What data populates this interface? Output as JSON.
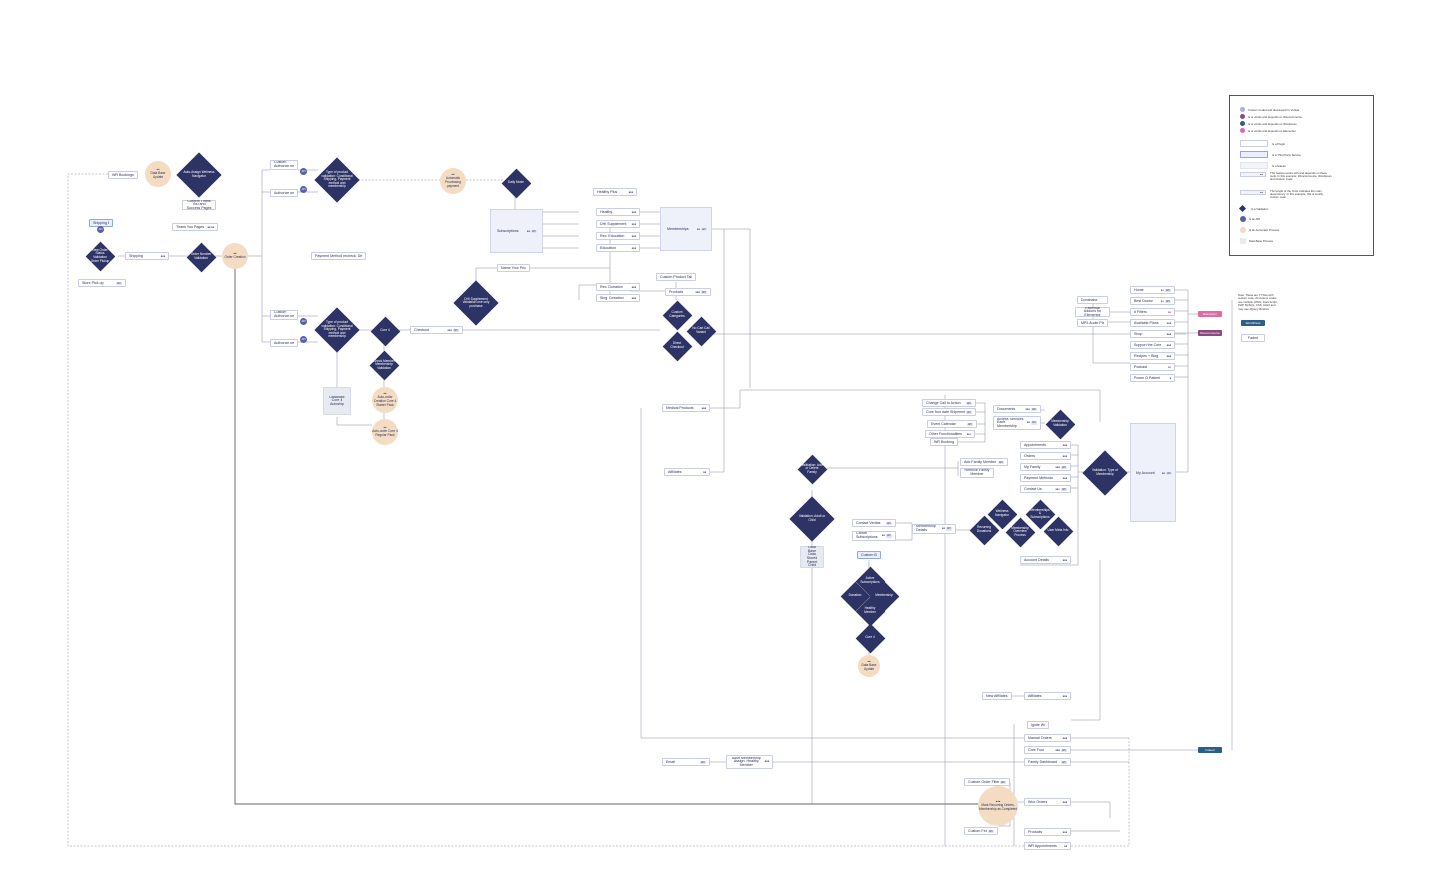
{
  "legend": {
    "items": [
      {
        "label": "Custom Coded and developed for Veritas",
        "color": "#a9b0dd"
      },
      {
        "label": "Is or works and depends on Woocommerce",
        "color": "#8b4a7d"
      },
      {
        "label": "Is or works and depends on Wordpress",
        "color": "#2a5f86"
      },
      {
        "label": "Is or works and depends on Elementor",
        "color": "#e06aa4"
      }
    ],
    "box_items": [
      {
        "label": "Is a Plugin"
      },
      {
        "label": "Is a Third Party Service"
      },
      {
        "label": "Is a feature"
      },
      {
        "label": "This feature works with and depends on these tools. In this example: Woocommerce, Wordpress and Custom Code"
      },
      {
        "label": "The length of the circle indicates the main dependency. In this example, this is mostly custom code"
      }
    ],
    "symbols": [
      {
        "label": "Is a Validation"
      },
      {
        "label": "Is an API"
      },
      {
        "label": "Is an Automatic Process"
      },
      {
        "label": "Data Base Process"
      }
    ]
  },
  "nodes": {
    "wp_bookings_top": "WR Bookings",
    "shipping_easy": "Shipping Easy",
    "store_pickup": "Store Pick-up",
    "shipping": "Shipping",
    "custom_thank_you": "Custom Thank You and Success Pages",
    "thank_you_pages": "Thank You Pages",
    "custom_authorize_1": "Custom Authorize.net",
    "authorize_1": "Authorize.net",
    "payment_method_recheck": "Payment Method recheck: Discount",
    "custom_authorize_2": "Custom Authorize.net",
    "authorize_2": "Authorize.net",
    "checkout": "Checkout",
    "database_core4": "Database Core 4 Autoship",
    "subscriptions": "Subscriptions",
    "name_your_price": "Name Your Price",
    "healthy_plus": "Healthy Plus",
    "healthy": "Healthy",
    "dhi_supplement": "DHI Supplement",
    "rec_education": "Rec. Education",
    "education": "Education",
    "rec_donation": "Rec. Donation",
    "sing_donation": "Sing. Donation",
    "custom_product_tabs": "Custom Product Tabs",
    "products_main": "Products",
    "memberships": "Memberships",
    "medical_products": "Medical Products",
    "affiliates_left": "Affiliates",
    "dominator": "Dominator",
    "essential_addons": "Essential Addons for Elementor",
    "mp3_audio": "MP3 Audio Player",
    "home": "Home",
    "best_doctor": "Best Doctor",
    "filters": "# Filters",
    "available_plans": "Available Plans",
    "shop": "Shop",
    "support_the_core": "Support the Core",
    "recipes_blog": "Recipes + Blog",
    "podcast": "Podcast",
    "power_patient": "Power O Patient",
    "change_call": "Change Call to Action",
    "core_four_date": "Core four date Shipment",
    "event_calendar": "Event Calendar",
    "other_functionalities": "Other Functionalities",
    "wr_bookings_mid": "WR Bookings",
    "documents": "Documents",
    "access_services": "Access Services Each Membership",
    "appointments": "Appointments",
    "orders": "Orders",
    "my_family": "My Family",
    "payment_methods": "Payment Methods",
    "contact_us": "Contact Us",
    "add_family_member": "Add Family Member",
    "remove_family_member": "Remove Family Member",
    "my_account": "My Account",
    "contact_veritas": "Contact Veritas",
    "cancel_subscriptions": "Cancel Subscriptions",
    "membership_details": "Membership Details",
    "custom_bot": "Custom Bot",
    "account_details": "Account Details",
    "data_base_parent": "Data Base Data Stored Parent Child",
    "new_affiliates": "New Affiliates",
    "affiliates_right": "Affiliates",
    "ignite_woo": "Ignite Woo",
    "manual_orders": "Manual Orders",
    "core_four": "Core Four",
    "family_dashboard": "Family Dashboard",
    "email": "Email",
    "adult_membership": "Adult Membership Assign: Healthy Member",
    "custom_order_filter": "Custom Order Filter",
    "wuo_orders": "Wuo Orders",
    "custom_features": "Custom Features",
    "products_bottom": "Products",
    "wr_appointments": "WR Appointments",
    "note": "Note: These are 77 files with custom code. All custom codes use multiple HTML, Java Script, PHP, MySQL, CSS, AJAX and may use JQuery libraries"
  },
  "diamonds": {
    "auto_assign": "Auto-Assign Wellness Navigator",
    "new_order": "New Order Status Validation Order Pickup",
    "order_number": "Order Number Validation",
    "type_product_1": "Type of product validation: Conditional Shipping, Payment method and membership",
    "daily_mode": "Daily Mode",
    "type_product_2": "Type of product validation: Conditional Shipping, Payment method and membership",
    "core4": "Core 4",
    "check_member": "Check Member Membership Validation",
    "dhi_supplement_val": "DHI Supplement Validation one only purchase",
    "custom_categories": "Custom Categories",
    "direct_checkout": "Direct Checkout",
    "no_cart": "No Cart Call Variant",
    "membership_val": "Membership Validation",
    "validation_add": "Validation: Add or Delete Family",
    "validation_adult": "Validation: Adult or Child",
    "validation_type": "Validation: Type of Membership",
    "wellness_navigator": "Wellness Navigator",
    "memberships_subscriptions": "Memberships & Subscriptions",
    "recurring_donations": "Recurring Donations",
    "membership_overview": "Membership Overview Process",
    "user_meta": "User Meta Info",
    "active_subscriptions": "Active Subscriptions",
    "donation": "Donation",
    "membership_d": "Membership",
    "healthy_member": "Healthy Member",
    "core4_bottom": "Core 4"
  },
  "circles": {
    "data_base_update_top": "Data Base Update",
    "order_creation": "Order Creation",
    "automatic_processing": "Automatic Processing payment",
    "auto_order_core4_starter": "Auto-order Creation Core 4 Starter Pack",
    "auto_order_core4_regular": "Auto-order Core 4 Regular Pack",
    "data_base_update_bottom": "Data Base Update",
    "mark_recurring": "Mark Recurring Orders, Membership as Completed"
  },
  "pills": {
    "elementor": "Elementor",
    "woocommerce": "Woocommerce",
    "wordpress": "WordPress",
    "faded": "Faded",
    "indeed": "Indeed"
  },
  "colors": {
    "diamond": "#2e3366",
    "circle": "#f3dcc2",
    "api": "#5b5fa8",
    "elementor": "#e06aa4",
    "woocommerce": "#8b4a7d",
    "wordpress": "#2a5f86",
    "line": "#666a80"
  },
  "icons": {
    "diamond": "validation-diamond",
    "circle": "automatic-process-circle",
    "api": "api-circle"
  }
}
